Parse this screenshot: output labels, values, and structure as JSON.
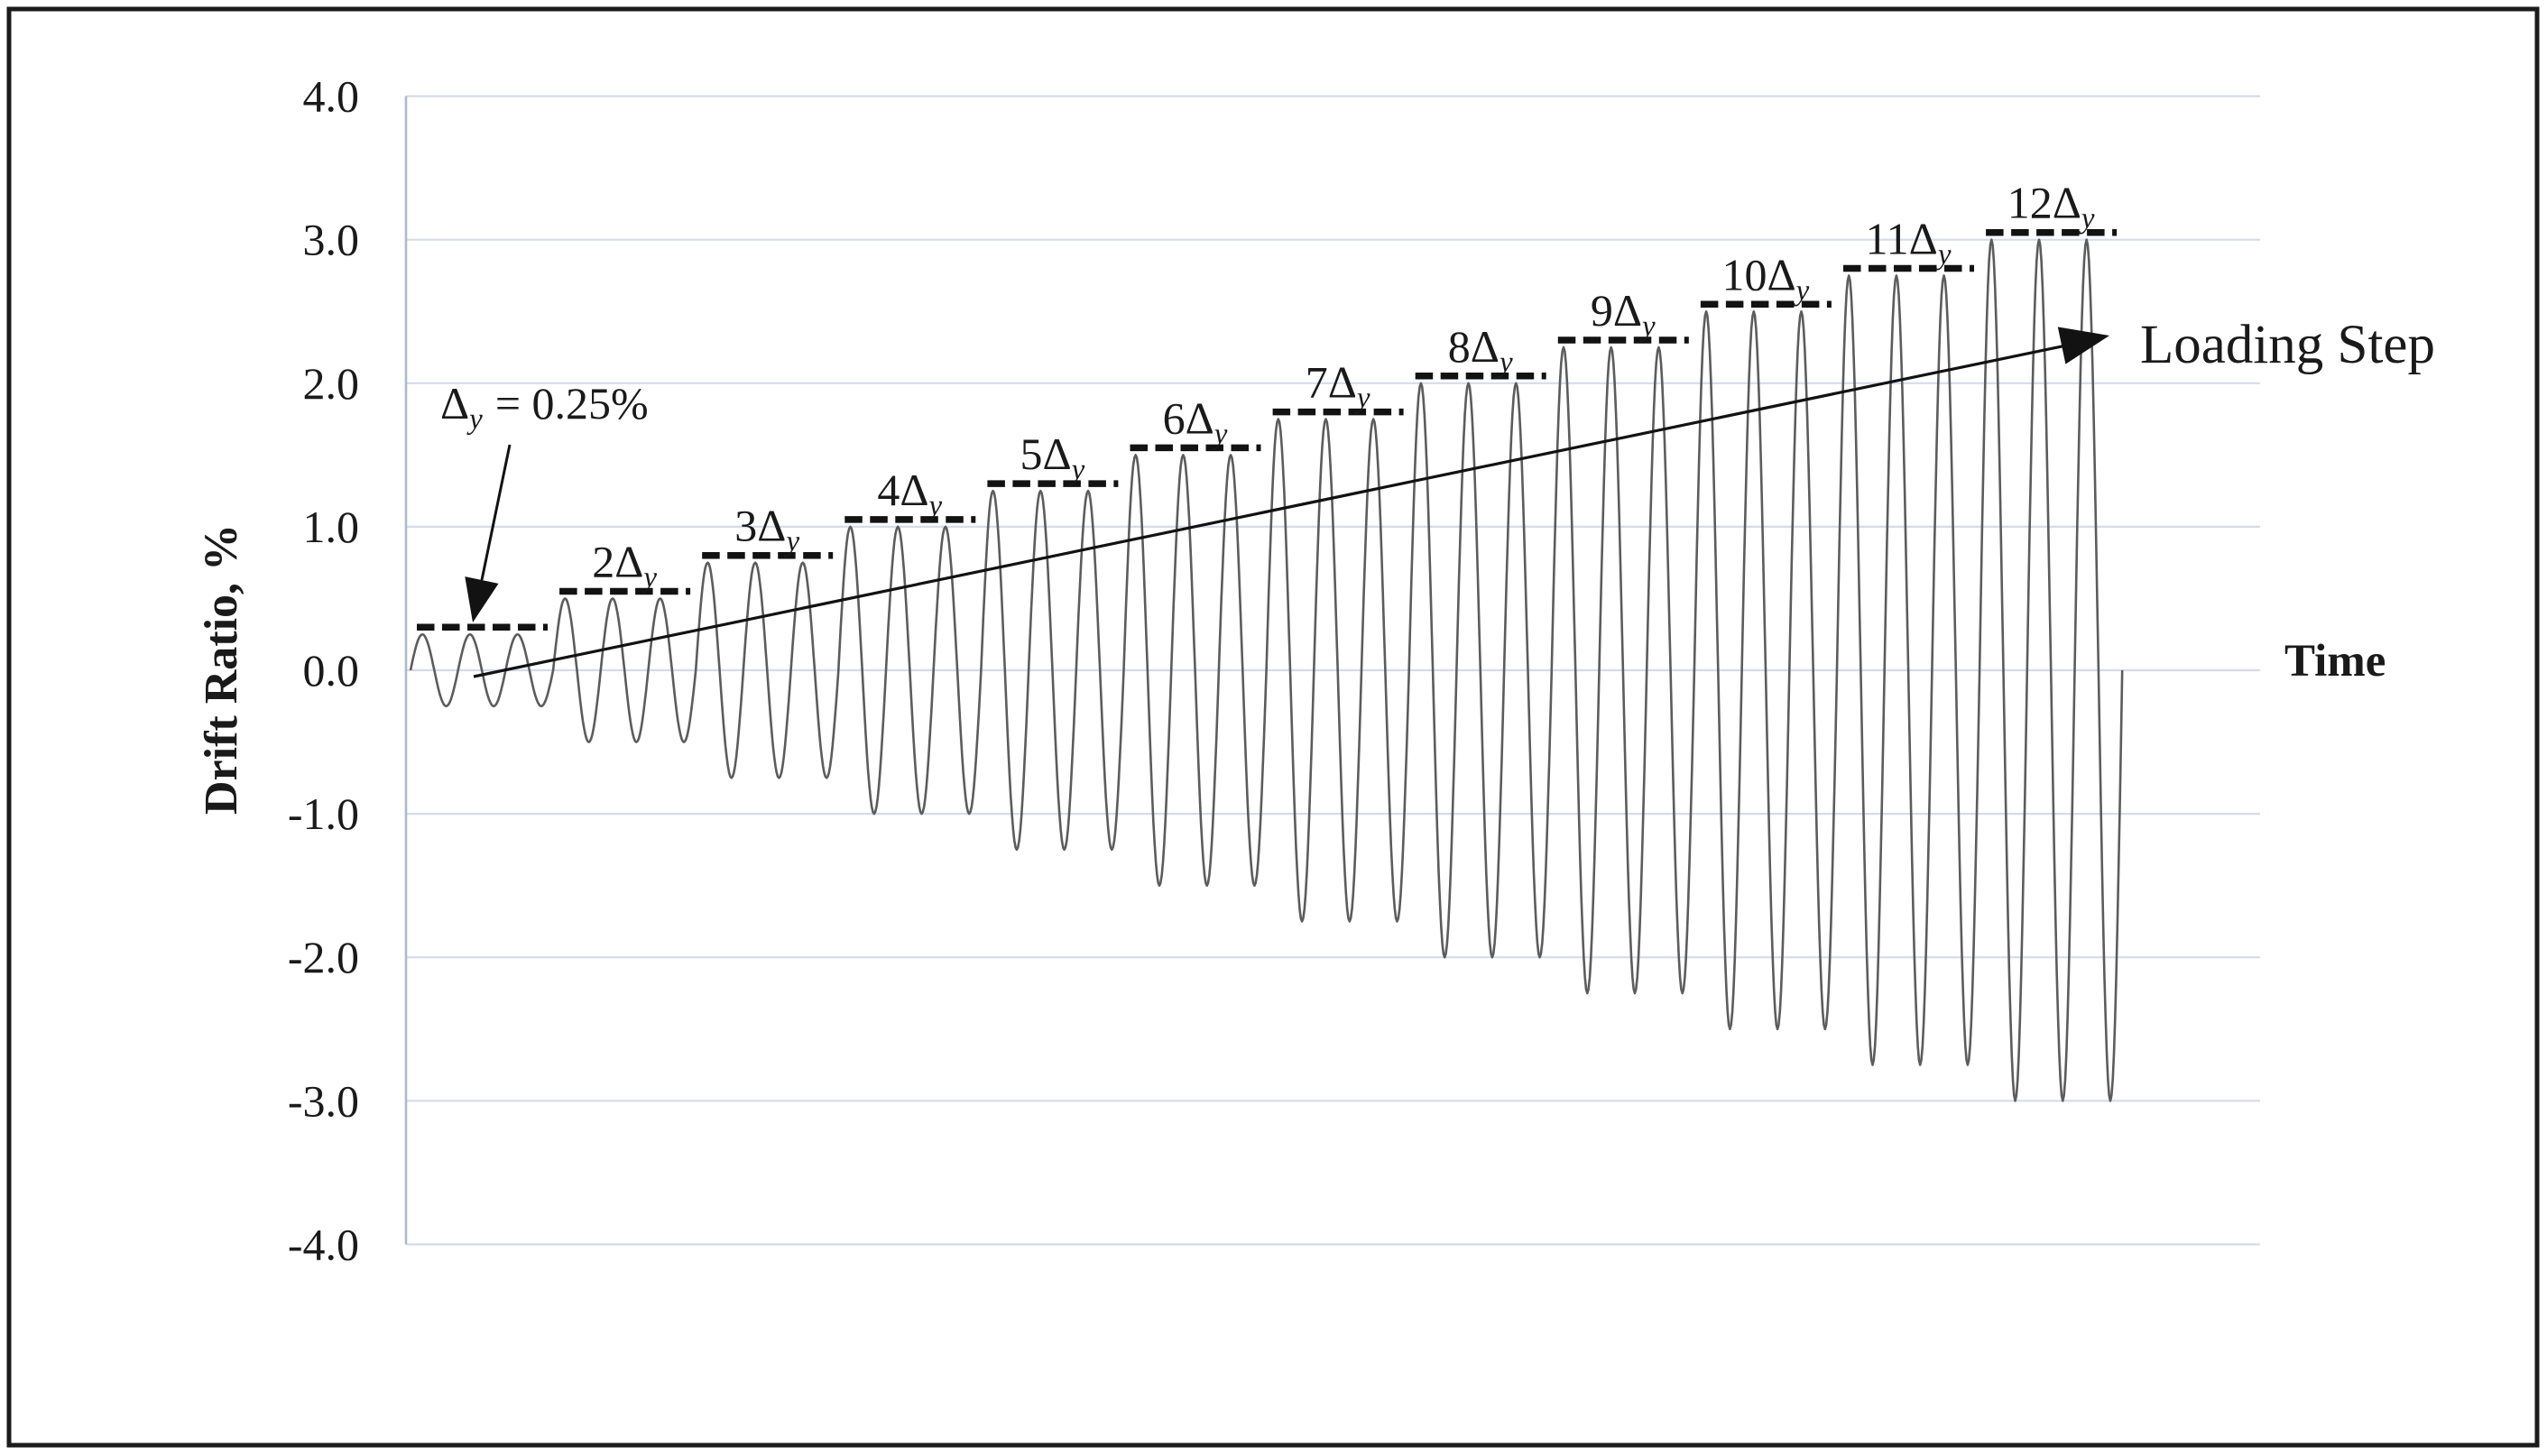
{
  "figure": {
    "kind": "cyclic-loading-protocol-figure"
  },
  "colors": {
    "frame": "#1b1b1b",
    "grid": "#d6dbe8",
    "axis": "#aeb9cd",
    "curve": "#5c5c5c",
    "dash": "#121212",
    "text": "#1a1a1a",
    "background": "#ffffff"
  },
  "chart_data": {
    "type": "line",
    "title": "",
    "ylabel": "Drift Ratio, %",
    "xlabel": "Time",
    "ylim": [
      -4.0,
      4.0
    ],
    "ytick_interval": 1.0,
    "grid": "horizontal-gridlines-on",
    "x_axis_ticks": "none",
    "yticks": [
      "4.0",
      "3.0",
      "2.0",
      "1.0",
      "0.0",
      "-1.0",
      "-2.0",
      "-3.0",
      "-4.0"
    ],
    "protocol": {
      "yield_drift_pct": 0.25,
      "cycles_per_step": 3,
      "waveform": "sine",
      "steps": [
        {
          "multiple": 1,
          "amplitude_pct": 0.25,
          "label_prefix": "Δ",
          "label_sub": "y",
          "show_label": false
        },
        {
          "multiple": 2,
          "amplitude_pct": 0.5,
          "label_prefix": "2Δ",
          "label_sub": "y",
          "show_label": true
        },
        {
          "multiple": 3,
          "amplitude_pct": 0.75,
          "label_prefix": "3Δ",
          "label_sub": "y",
          "show_label": true
        },
        {
          "multiple": 4,
          "amplitude_pct": 1.0,
          "label_prefix": "4Δ",
          "label_sub": "y",
          "show_label": true
        },
        {
          "multiple": 5,
          "amplitude_pct": 1.25,
          "label_prefix": "5Δ",
          "label_sub": "y",
          "show_label": true
        },
        {
          "multiple": 6,
          "amplitude_pct": 1.5,
          "label_prefix": "6Δ",
          "label_sub": "y",
          "show_label": true
        },
        {
          "multiple": 7,
          "amplitude_pct": 1.75,
          "label_prefix": "7Δ",
          "label_sub": "y",
          "show_label": true
        },
        {
          "multiple": 8,
          "amplitude_pct": 2.0,
          "label_prefix": "8Δ",
          "label_sub": "y",
          "show_label": true
        },
        {
          "multiple": 9,
          "amplitude_pct": 2.25,
          "label_prefix": "9Δ",
          "label_sub": "y",
          "show_label": true
        },
        {
          "multiple": 10,
          "amplitude_pct": 2.5,
          "label_prefix": "10Δ",
          "label_sub": "y",
          "show_label": true
        },
        {
          "multiple": 11,
          "amplitude_pct": 2.75,
          "label_prefix": "11Δ",
          "label_sub": "y",
          "show_label": true
        },
        {
          "multiple": 12,
          "amplitude_pct": 3.0,
          "label_prefix": "12Δ",
          "label_sub": "y",
          "show_label": true
        }
      ]
    },
    "annotations": {
      "yield": {
        "display": "Δy = 0.25%",
        "base": "Δ",
        "sub": "y",
        "rest": "= 0.25%"
      },
      "loading_step": "Loading Step",
      "time": "Time"
    },
    "legend": "none"
  }
}
